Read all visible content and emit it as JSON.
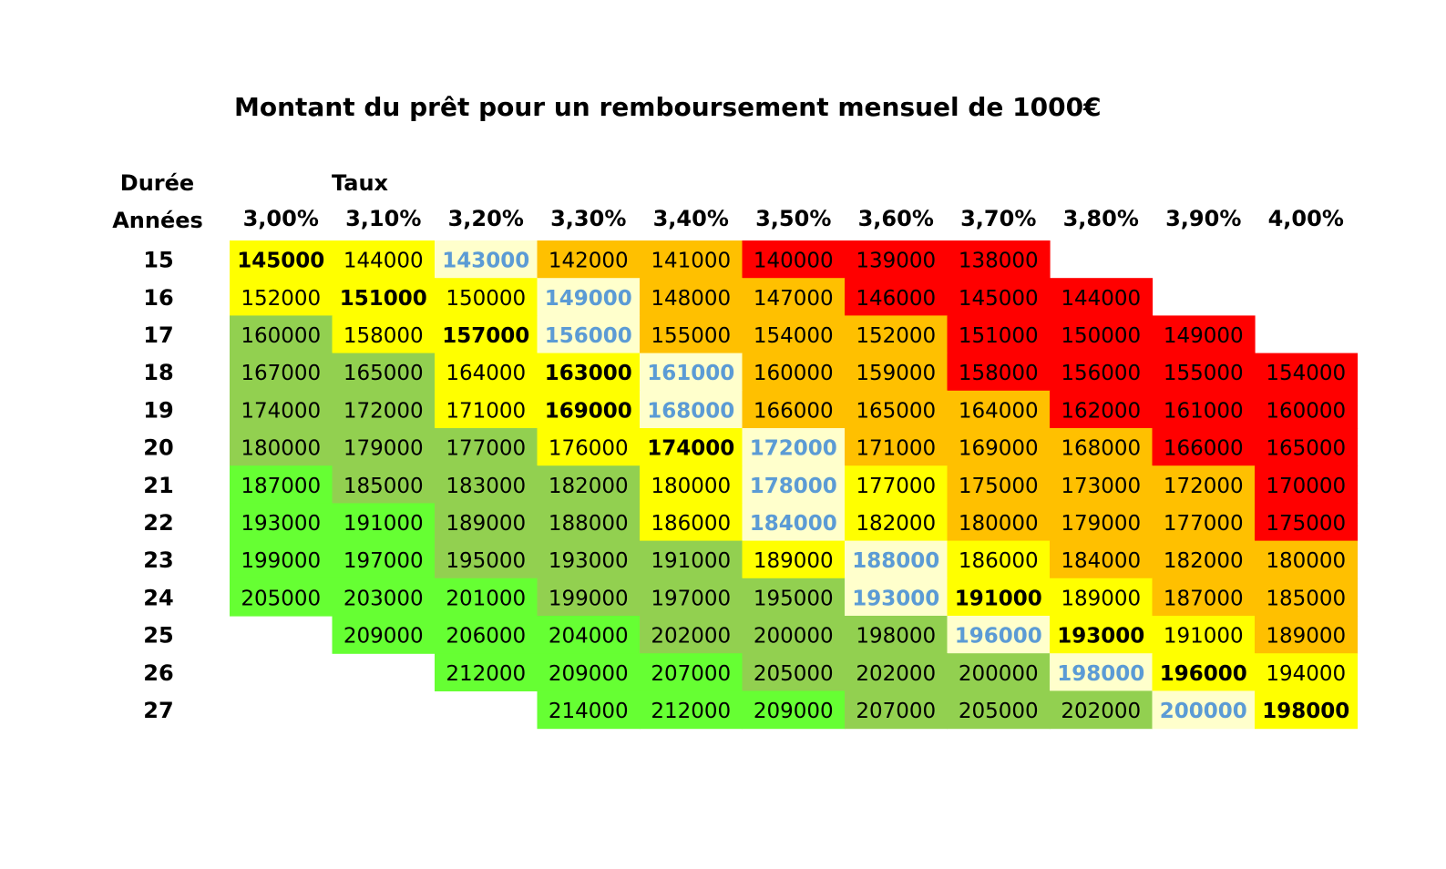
{
  "title": "Montant du prêt pour un remboursement mensuel de 1000€",
  "row_header_top": "Durée",
  "row_header_bottom": "Années",
  "col_header_top": "Taux",
  "colors": {
    "green_bright": "#66ff33",
    "green_olive": "#92d050",
    "yellow": "#ffff00",
    "cream": "#ffffcc",
    "orange": "#ffc000",
    "red": "#ff0000",
    "text_default": "#000000",
    "text_highlight": "#5b9bd5"
  },
  "chart_data": {
    "type": "heatmap",
    "title": "Montant du prêt pour un remboursement mensuel de 1000€",
    "x_axis_top_label": "Taux",
    "y_axis_label_lines": [
      "Durée",
      "Années"
    ],
    "columns": [
      "3,00%",
      "3,10%",
      "3,20%",
      "3,30%",
      "3,40%",
      "3,50%",
      "3,60%",
      "3,70%",
      "3,80%",
      "3,90%",
      "4,00%"
    ],
    "rows": [
      "15",
      "16",
      "17",
      "18",
      "19",
      "20",
      "21",
      "22",
      "23",
      "24",
      "25",
      "26",
      "27"
    ],
    "values": [
      [
        "145000",
        "144000",
        "143000",
        "142000",
        "141000",
        "140000",
        "139000",
        "138000",
        null,
        null,
        null
      ],
      [
        "152000",
        "151000",
        "150000",
        "149000",
        "148000",
        "147000",
        "146000",
        "145000",
        "144000",
        null,
        null
      ],
      [
        "160000",
        "158000",
        "157000",
        "156000",
        "155000",
        "154000",
        "152000",
        "151000",
        "150000",
        "149000",
        null
      ],
      [
        "167000",
        "165000",
        "164000",
        "163000",
        "161000",
        "160000",
        "159000",
        "158000",
        "156000",
        "155000",
        "154000"
      ],
      [
        "174000",
        "172000",
        "171000",
        "169000",
        "168000",
        "166000",
        "165000",
        "164000",
        "162000",
        "161000",
        "160000"
      ],
      [
        "180000",
        "179000",
        "177000",
        "176000",
        "174000",
        "172000",
        "171000",
        "169000",
        "168000",
        "166000",
        "165000"
      ],
      [
        "187000",
        "185000",
        "183000",
        "182000",
        "180000",
        "178000",
        "177000",
        "175000",
        "173000",
        "172000",
        "170000"
      ],
      [
        "193000",
        "191000",
        "189000",
        "188000",
        "186000",
        "184000",
        "182000",
        "180000",
        "179000",
        "177000",
        "175000"
      ],
      [
        "199000",
        "197000",
        "195000",
        "193000",
        "191000",
        "189000",
        "188000",
        "186000",
        "184000",
        "182000",
        "180000"
      ],
      [
        "205000",
        "203000",
        "201000",
        "199000",
        "197000",
        "195000",
        "193000",
        "191000",
        "189000",
        "187000",
        "185000"
      ],
      [
        null,
        "209000",
        "206000",
        "204000",
        "202000",
        "200000",
        "198000",
        "196000",
        "193000",
        "191000",
        "189000"
      ],
      [
        null,
        null,
        "212000",
        "209000",
        "207000",
        "205000",
        "202000",
        "200000",
        "198000",
        "196000",
        "194000"
      ],
      [
        null,
        null,
        null,
        "214000",
        "212000",
        "209000",
        "207000",
        "205000",
        "202000",
        "200000",
        "198000"
      ]
    ],
    "fills": [
      [
        "yellow",
        "yellow",
        "cream",
        "orange",
        "orange",
        "red",
        "red",
        "red",
        null,
        null,
        null
      ],
      [
        "yellow",
        "yellow",
        "yellow",
        "cream",
        "orange",
        "orange",
        "red",
        "red",
        "red",
        null,
        null
      ],
      [
        "green_olive",
        "yellow",
        "yellow",
        "cream",
        "orange",
        "orange",
        "orange",
        "red",
        "red",
        "red",
        null
      ],
      [
        "green_olive",
        "green_olive",
        "yellow",
        "yellow",
        "cream",
        "orange",
        "orange",
        "red",
        "red",
        "red",
        "red"
      ],
      [
        "green_olive",
        "green_olive",
        "yellow",
        "yellow",
        "cream",
        "orange",
        "orange",
        "orange",
        "red",
        "red",
        "red"
      ],
      [
        "green_olive",
        "green_olive",
        "green_olive",
        "yellow",
        "yellow",
        "cream",
        "orange",
        "orange",
        "orange",
        "red",
        "red"
      ],
      [
        "green_bright",
        "green_olive",
        "green_olive",
        "green_olive",
        "yellow",
        "cream",
        "yellow",
        "orange",
        "orange",
        "orange",
        "red"
      ],
      [
        "green_bright",
        "green_bright",
        "green_olive",
        "green_olive",
        "yellow",
        "cream",
        "yellow",
        "orange",
        "orange",
        "orange",
        "red"
      ],
      [
        "green_bright",
        "green_bright",
        "green_olive",
        "green_olive",
        "green_olive",
        "yellow",
        "cream",
        "yellow",
        "orange",
        "orange",
        "orange"
      ],
      [
        "green_bright",
        "green_bright",
        "green_bright",
        "green_olive",
        "green_olive",
        "green_olive",
        "cream",
        "yellow",
        "yellow",
        "orange",
        "orange"
      ],
      [
        null,
        "green_bright",
        "green_bright",
        "green_bright",
        "green_olive",
        "green_olive",
        "green_olive",
        "cream",
        "yellow",
        "yellow",
        "orange"
      ],
      [
        null,
        null,
        "green_bright",
        "green_bright",
        "green_bright",
        "green_olive",
        "green_olive",
        "green_olive",
        "cream",
        "yellow",
        "yellow"
      ],
      [
        null,
        null,
        null,
        "green_bright",
        "green_bright",
        "green_bright",
        "green_olive",
        "green_olive",
        "green_olive",
        "cream",
        "yellow"
      ]
    ],
    "bold_cells": [
      [
        0,
        0
      ],
      [
        1,
        1
      ],
      [
        2,
        2
      ],
      [
        3,
        3
      ],
      [
        4,
        3
      ],
      [
        5,
        4
      ],
      [
        6,
        5
      ],
      [
        7,
        5
      ],
      [
        8,
        6
      ],
      [
        9,
        7
      ],
      [
        10,
        8
      ],
      [
        11,
        9
      ],
      [
        12,
        10
      ],
      [
        0,
        2
      ],
      [
        1,
        3
      ],
      [
        2,
        3
      ],
      [
        3,
        4
      ],
      [
        4,
        4
      ],
      [
        5,
        5
      ],
      [
        9,
        6
      ],
      [
        10,
        7
      ],
      [
        11,
        8
      ],
      [
        12,
        9
      ]
    ],
    "blue_text_cells": [
      [
        0,
        2
      ],
      [
        1,
        3
      ],
      [
        2,
        3
      ],
      [
        3,
        4
      ],
      [
        4,
        4
      ],
      [
        5,
        5
      ],
      [
        6,
        5
      ],
      [
        7,
        5
      ],
      [
        8,
        6
      ],
      [
        9,
        6
      ],
      [
        10,
        7
      ],
      [
        11,
        8
      ],
      [
        12,
        9
      ]
    ],
    "grid": false,
    "legend": "none"
  }
}
